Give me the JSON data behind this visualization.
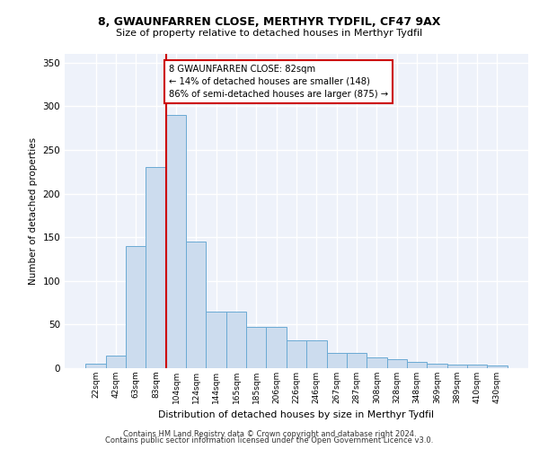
{
  "title1": "8, GWAUNFARREN CLOSE, MERTHYR TYDFIL, CF47 9AX",
  "title2": "Size of property relative to detached houses in Merthyr Tydfil",
  "xlabel": "Distribution of detached houses by size in Merthyr Tydfil",
  "ylabel": "Number of detached properties",
  "categories": [
    "22sqm",
    "42sqm",
    "63sqm",
    "83sqm",
    "104sqm",
    "124sqm",
    "144sqm",
    "165sqm",
    "185sqm",
    "206sqm",
    "226sqm",
    "246sqm",
    "267sqm",
    "287sqm",
    "308sqm",
    "328sqm",
    "348sqm",
    "369sqm",
    "389sqm",
    "410sqm",
    "430sqm"
  ],
  "values": [
    5,
    14,
    140,
    230,
    290,
    145,
    65,
    65,
    47,
    47,
    32,
    32,
    18,
    18,
    12,
    10,
    7,
    5,
    4,
    4,
    3
  ],
  "bar_color": "#ccdcee",
  "bar_edge_color": "#6aaad4",
  "red_line_x": 3.5,
  "annotation_text": "8 GWAUNFARREN CLOSE: 82sqm\n← 14% of detached houses are smaller (148)\n86% of semi-detached houses are larger (875) →",
  "annotation_box_color": "white",
  "annotation_box_edge_color": "#cc0000",
  "red_line_color": "#cc0000",
  "background_color": "#eef2fa",
  "grid_color": "#ffffff",
  "footer1": "Contains HM Land Registry data © Crown copyright and database right 2024.",
  "footer2": "Contains public sector information licensed under the Open Government Licence v3.0.",
  "ylim": [
    0,
    360
  ],
  "yticks": [
    0,
    50,
    100,
    150,
    200,
    250,
    300,
    350
  ]
}
